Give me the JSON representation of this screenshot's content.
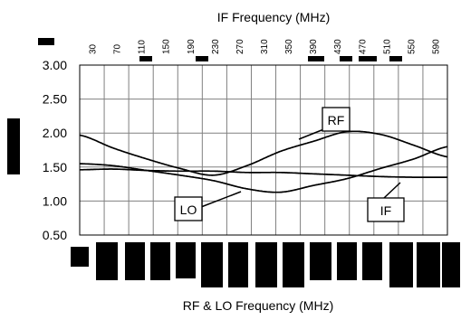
{
  "chart_data": {
    "type": "line",
    "title": "IF Frequency (MHz)",
    "xlabel": "RF & LO Frequency (MHz)",
    "ylabel": "",
    "x": [
      0,
      1,
      2,
      3,
      4,
      5,
      6,
      7,
      8,
      9,
      10,
      11
    ],
    "xlim": [
      0,
      11
    ],
    "ylim": [
      0.5,
      3.0
    ],
    "yticks": [
      "3.00",
      "2.50",
      "2.00",
      "1.50",
      "1.00",
      "0.50"
    ],
    "ytick_values": [
      3.0,
      2.5,
      2.0,
      1.5,
      1.0,
      0.5
    ],
    "top_axis_ticks": [
      "30",
      "70",
      "110",
      "150",
      "190",
      "230",
      "270",
      "310",
      "350",
      "390",
      "430",
      "470",
      "510",
      "550",
      "590"
    ],
    "grid": true,
    "series": [
      {
        "name": "RF",
        "values": [
          1.97,
          1.78,
          1.62,
          1.48,
          1.38,
          1.52,
          1.73,
          1.88,
          2.02,
          1.98,
          1.82,
          1.65
        ]
      },
      {
        "name": "LO",
        "values": [
          1.55,
          1.52,
          1.45,
          1.38,
          1.3,
          1.18,
          1.13,
          1.23,
          1.33,
          1.48,
          1.62,
          1.8
        ]
      },
      {
        "name": "IF",
        "values": [
          1.46,
          1.47,
          1.45,
          1.44,
          1.44,
          1.42,
          1.42,
          1.4,
          1.38,
          1.36,
          1.35,
          1.35
        ]
      }
    ],
    "annotations": [
      "RF",
      "LO",
      "IF"
    ],
    "colors": {
      "line": "#000000",
      "grid": "#808080",
      "frame": "#000000"
    }
  }
}
